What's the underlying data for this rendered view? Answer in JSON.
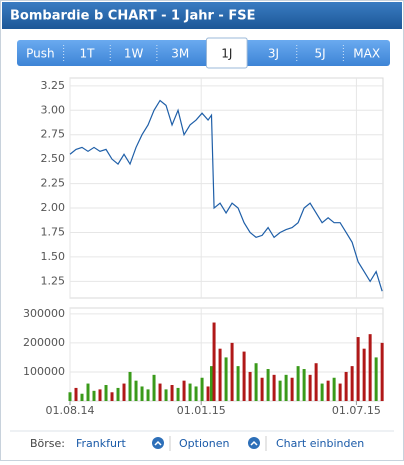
{
  "header": {
    "title": "Bombardie b CHART - 1 Jahr - FSE"
  },
  "tabs": [
    "Push",
    "1T",
    "1W",
    "3M",
    "1J",
    "3J",
    "5J",
    "MAX"
  ],
  "selected_tab": 4,
  "chart_data": [
    {
      "type": "line",
      "x": [
        "2014-08-01",
        "2014-08-08",
        "2014-08-15",
        "2014-08-22",
        "2014-08-29",
        "2014-09-05",
        "2014-09-12",
        "2014-09-19",
        "2014-09-26",
        "2014-10-03",
        "2014-10-10",
        "2014-10-17",
        "2014-10-24",
        "2014-10-31",
        "2014-11-07",
        "2014-11-14",
        "2014-11-21",
        "2014-11-28",
        "2014-12-05",
        "2014-12-12",
        "2014-12-19",
        "2014-12-26",
        "2015-01-02",
        "2015-01-09",
        "2015-01-13",
        "2015-01-16",
        "2015-01-23",
        "2015-01-30",
        "2015-02-06",
        "2015-02-13",
        "2015-02-20",
        "2015-02-27",
        "2015-03-06",
        "2015-03-13",
        "2015-03-20",
        "2015-03-27",
        "2015-04-03",
        "2015-04-10",
        "2015-04-17",
        "2015-04-24",
        "2015-05-01",
        "2015-05-08",
        "2015-05-15",
        "2015-05-22",
        "2015-05-29",
        "2015-06-05",
        "2015-06-12",
        "2015-06-19",
        "2015-06-26",
        "2015-07-03",
        "2015-07-10",
        "2015-07-17",
        "2015-07-24",
        "2015-07-31"
      ],
      "series": [
        {
          "color": "#1f5fa8",
          "values": [
            2.55,
            2.6,
            2.62,
            2.58,
            2.62,
            2.58,
            2.6,
            2.5,
            2.45,
            2.55,
            2.45,
            2.62,
            2.75,
            2.85,
            3.0,
            3.1,
            3.05,
            2.85,
            3.0,
            2.75,
            2.85,
            2.9,
            2.97,
            2.9,
            2.95,
            2.0,
            2.05,
            1.95,
            2.05,
            2.0,
            1.85,
            1.75,
            1.7,
            1.72,
            1.8,
            1.7,
            1.75,
            1.78,
            1.8,
            1.85,
            2.0,
            2.05,
            1.95,
            1.85,
            1.9,
            1.85,
            1.85,
            1.75,
            1.65,
            1.45,
            1.35,
            1.25,
            1.35,
            1.15
          ]
        }
      ],
      "xlim": [
        "2014-08-01",
        "2015-08-01"
      ],
      "ylim": [
        1.08,
        3.33
      ],
      "yticks": [
        1.25,
        {
          "value": 1.5,
          "label": "1.50"
        },
        1.75,
        {
          "value": 2,
          "label": "2.00"
        },
        2.25,
        {
          "value": 2.5,
          "label": "2.50"
        },
        2.75,
        {
          "value": 3,
          "label": "3.00"
        },
        3.25
      ],
      "grid": true
    },
    {
      "type": "bar",
      "x": [
        "2014-08-01",
        "2014-08-08",
        "2014-08-15",
        "2014-08-22",
        "2014-08-29",
        "2014-09-05",
        "2014-09-12",
        "2014-09-19",
        "2014-09-26",
        "2014-10-03",
        "2014-10-10",
        "2014-10-17",
        "2014-10-24",
        "2014-10-31",
        "2014-11-07",
        "2014-11-14",
        "2014-11-21",
        "2014-11-28",
        "2014-12-05",
        "2014-12-12",
        "2014-12-19",
        "2014-12-26",
        "2015-01-02",
        "2015-01-09",
        "2015-01-13",
        "2015-01-16",
        "2015-01-23",
        "2015-01-30",
        "2015-02-06",
        "2015-02-13",
        "2015-02-20",
        "2015-02-27",
        "2015-03-06",
        "2015-03-13",
        "2015-03-20",
        "2015-03-27",
        "2015-04-03",
        "2015-04-10",
        "2015-04-17",
        "2015-04-24",
        "2015-05-01",
        "2015-05-08",
        "2015-05-15",
        "2015-05-22",
        "2015-05-29",
        "2015-06-05",
        "2015-06-12",
        "2015-06-19",
        "2015-06-26",
        "2015-07-03",
        "2015-07-10",
        "2015-07-17",
        "2015-07-24",
        "2015-07-31"
      ],
      "values": [
        30000,
        45000,
        25000,
        60000,
        35000,
        40000,
        55000,
        30000,
        45000,
        60000,
        100000,
        70000,
        50000,
        40000,
        90000,
        60000,
        40000,
        55000,
        45000,
        70000,
        60000,
        50000,
        80000,
        50000,
        120000,
        270000,
        180000,
        150000,
        200000,
        120000,
        170000,
        100000,
        130000,
        80000,
        110000,
        90000,
        70000,
        90000,
        80000,
        120000,
        110000,
        90000,
        130000,
        60000,
        70000,
        80000,
        60000,
        100000,
        120000,
        220000,
        180000,
        230000,
        150000,
        200000
      ],
      "colors": [
        "#3a9a1a",
        "#b01818",
        "#3a9a1a",
        "#3a9a1a",
        "#3a9a1a",
        "#b01818",
        "#3a9a1a",
        "#b01818",
        "#3a9a1a",
        "#b01818",
        "#3a9a1a",
        "#3a9a1a",
        "#3a9a1a",
        "#3a9a1a",
        "#3a9a1a",
        "#b01818",
        "#3a9a1a",
        "#b01818",
        "#3a9a1a",
        "#b01818",
        "#3a9a1a",
        "#3a9a1a",
        "#3a9a1a",
        "#b01818",
        "#3a9a1a",
        "#b01818",
        "#b01818",
        "#3a9a1a",
        "#b01818",
        "#3a9a1a",
        "#b01818",
        "#b01818",
        "#3a9a1a",
        "#b01818",
        "#3a9a1a",
        "#b01818",
        "#3a9a1a",
        "#3a9a1a",
        "#b01818",
        "#3a9a1a",
        "#3a9a1a",
        "#b01818",
        "#b01818",
        "#3a9a1a",
        "#b01818",
        "#3a9a1a",
        "#b01818",
        "#b01818",
        "#b01818",
        "#b01818",
        "#b01818",
        "#b01818",
        "#3a9a1a",
        "#b01818"
      ],
      "xlim": [
        "2014-08-01",
        "2015-08-01"
      ],
      "ylim": [
        0,
        320000
      ],
      "yticks": [
        100000,
        200000,
        300000
      ],
      "xticks": [
        {
          "value": "2014-08-01",
          "label": "01.08.14"
        },
        {
          "value": "2015-01-01",
          "label": "01.01.15"
        },
        {
          "value": "2015-07-01",
          "label": "01.07.15"
        }
      ],
      "grid": true
    }
  ],
  "footer": {
    "exchange_label": "Börse:",
    "exchange": "Frankfurt",
    "options": "Optionen",
    "embed": "Chart einbinden"
  }
}
